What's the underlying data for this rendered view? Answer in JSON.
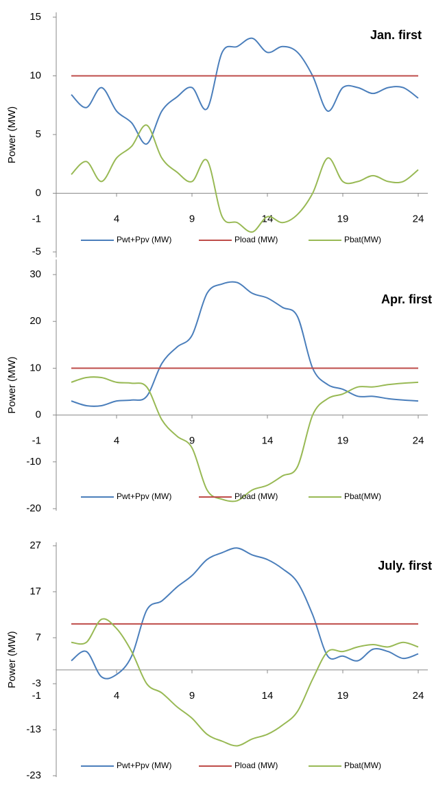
{
  "chart_data": [
    {
      "type": "line",
      "title": "Jan. first",
      "y_label": "Power (MW)",
      "x_origin_label": "-1",
      "x": [
        1,
        2,
        3,
        4,
        5,
        6,
        7,
        8,
        9,
        10,
        11,
        12,
        13,
        14,
        15,
        16,
        17,
        18,
        19,
        20,
        21,
        22,
        23,
        24
      ],
      "xlim": [
        0,
        25
      ],
      "xticks": [
        4,
        9,
        14,
        19,
        24
      ],
      "ylim": [
        -5,
        15
      ],
      "yticks": [
        -5,
        0,
        5,
        10,
        15
      ],
      "series": [
        {
          "name": "Pwt+Ppv (MW)",
          "color": "#4a7ebb",
          "values": [
            8.4,
            7.3,
            9,
            7,
            6,
            4.2,
            7,
            8.2,
            9,
            7.2,
            12,
            12.5,
            13.2,
            12,
            12.5,
            12,
            10,
            7,
            9,
            9,
            8.5,
            9,
            9,
            8.1
          ]
        },
        {
          "name": "Pload (MW)",
          "color": "#be4b48",
          "values": [
            10,
            10,
            10,
            10,
            10,
            10,
            10,
            10,
            10,
            10,
            10,
            10,
            10,
            10,
            10,
            10,
            10,
            10,
            10,
            10,
            10,
            10,
            10,
            10
          ]
        },
        {
          "name": "Pbat(MW)",
          "color": "#98b954",
          "values": [
            1.6,
            2.7,
            1,
            3,
            4,
            5.8,
            3,
            1.8,
            1,
            2.8,
            -2,
            -2.5,
            -3.3,
            -2,
            -2.5,
            -1.8,
            0,
            3,
            1,
            1,
            1.5,
            1,
            1,
            2
          ]
        }
      ]
    },
    {
      "type": "line",
      "title": "Apr. first",
      "y_label": "Power (MW)",
      "x_origin_label": "-1",
      "x": [
        1,
        2,
        3,
        4,
        5,
        6,
        7,
        8,
        9,
        10,
        11,
        12,
        13,
        14,
        15,
        16,
        17,
        18,
        19,
        20,
        21,
        22,
        23,
        24
      ],
      "xlim": [
        0,
        25
      ],
      "xticks": [
        4,
        9,
        14,
        19,
        24
      ],
      "ylim": [
        -20,
        30
      ],
      "yticks": [
        -20,
        -10,
        0,
        10,
        20,
        30
      ],
      "series": [
        {
          "name": "Pwt+Ppv (MW)",
          "color": "#4a7ebb",
          "values": [
            3,
            2,
            2,
            3,
            3.2,
            4,
            11,
            14.5,
            17,
            26,
            28,
            28.3,
            26,
            25,
            23,
            21,
            10,
            6.5,
            5.5,
            4,
            4,
            3.5,
            3.2,
            3
          ]
        },
        {
          "name": "Pload (MW)",
          "color": "#be4b48",
          "values": [
            10,
            10,
            10,
            10,
            10,
            10,
            10,
            10,
            10,
            10,
            10,
            10,
            10,
            10,
            10,
            10,
            10,
            10,
            10,
            10,
            10,
            10,
            10,
            10
          ]
        },
        {
          "name": "Pbat(MW)",
          "color": "#98b954",
          "values": [
            7,
            8,
            8,
            7,
            6.8,
            6,
            -1,
            -4.5,
            -7,
            -16,
            -18,
            -18.3,
            -16,
            -15,
            -13,
            -11,
            0,
            3.5,
            4.5,
            6,
            6,
            6.5,
            6.8,
            7
          ]
        }
      ]
    },
    {
      "type": "line",
      "title": "July. first",
      "y_label": "Power (MW)",
      "x_origin_label": "-1",
      "x": [
        1,
        2,
        3,
        4,
        5,
        6,
        7,
        8,
        9,
        10,
        11,
        12,
        13,
        14,
        15,
        16,
        17,
        18,
        19,
        20,
        21,
        22,
        23,
        24
      ],
      "xlim": [
        0,
        25
      ],
      "xticks": [
        4,
        9,
        14,
        19,
        24
      ],
      "ylim": [
        -23,
        27
      ],
      "yticks": [
        -23,
        -13,
        -3,
        7,
        17,
        27
      ],
      "series": [
        {
          "name": "Pwt+Ppv (MW)",
          "color": "#4a7ebb",
          "values": [
            2,
            4,
            -1.5,
            -1,
            3,
            13,
            15,
            18,
            20.5,
            24,
            25.5,
            26.5,
            25,
            24,
            22,
            19,
            12,
            3,
            3,
            2,
            4.5,
            4,
            2.5,
            3.5
          ]
        },
        {
          "name": "Pload (MW)",
          "color": "#be4b48",
          "values": [
            10,
            10,
            10,
            10,
            10,
            10,
            10,
            10,
            10,
            10,
            10,
            10,
            10,
            10,
            10,
            10,
            10,
            10,
            10,
            10,
            10,
            10,
            10,
            10
          ]
        },
        {
          "name": "Pbat(MW)",
          "color": "#98b954",
          "values": [
            6,
            6,
            11,
            9,
            4,
            -3,
            -5,
            -8,
            -10.5,
            -14,
            -15.5,
            -16.5,
            -15,
            -14,
            -12,
            -9,
            -2,
            4,
            4,
            5,
            5.5,
            5,
            6,
            5
          ]
        }
      ]
    }
  ]
}
